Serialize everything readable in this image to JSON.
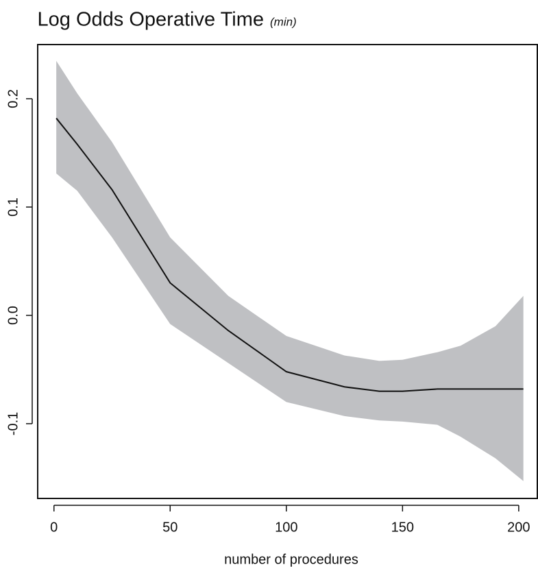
{
  "chart_data": {
    "type": "line",
    "title": "Log Odds Operative Time",
    "title_unit": "(min)",
    "x_label": "number of procedures",
    "x": [
      1,
      10,
      25,
      50,
      75,
      100,
      125,
      140,
      150,
      165,
      175,
      190,
      202
    ],
    "values": [
      0.182,
      0.158,
      0.116,
      0.03,
      -0.014,
      -0.052,
      -0.066,
      -0.07,
      -0.07,
      -0.068,
      -0.068,
      -0.068,
      -0.068
    ],
    "upper": [
      0.235,
      0.205,
      0.16,
      0.072,
      0.018,
      -0.019,
      -0.037,
      -0.042,
      -0.041,
      -0.034,
      -0.028,
      -0.01,
      0.018
    ],
    "lower": [
      0.131,
      0.115,
      0.072,
      -0.008,
      -0.044,
      -0.08,
      -0.093,
      -0.097,
      -0.098,
      -0.101,
      -0.112,
      -0.132,
      -0.153
    ],
    "color": "#111111",
    "band_color": "#bfc0c3",
    "xlim": [
      -7,
      208
    ],
    "xticks": [
      0,
      50,
      100,
      150,
      200
    ],
    "ylim": [
      -0.169,
      0.25
    ],
    "yticks": [
      {
        "value": -0.1,
        "label": "-0.1"
      },
      {
        "value": 0,
        "label": "0.0"
      },
      {
        "value": 0.1,
        "label": "0.1"
      },
      0.2
    ]
  }
}
